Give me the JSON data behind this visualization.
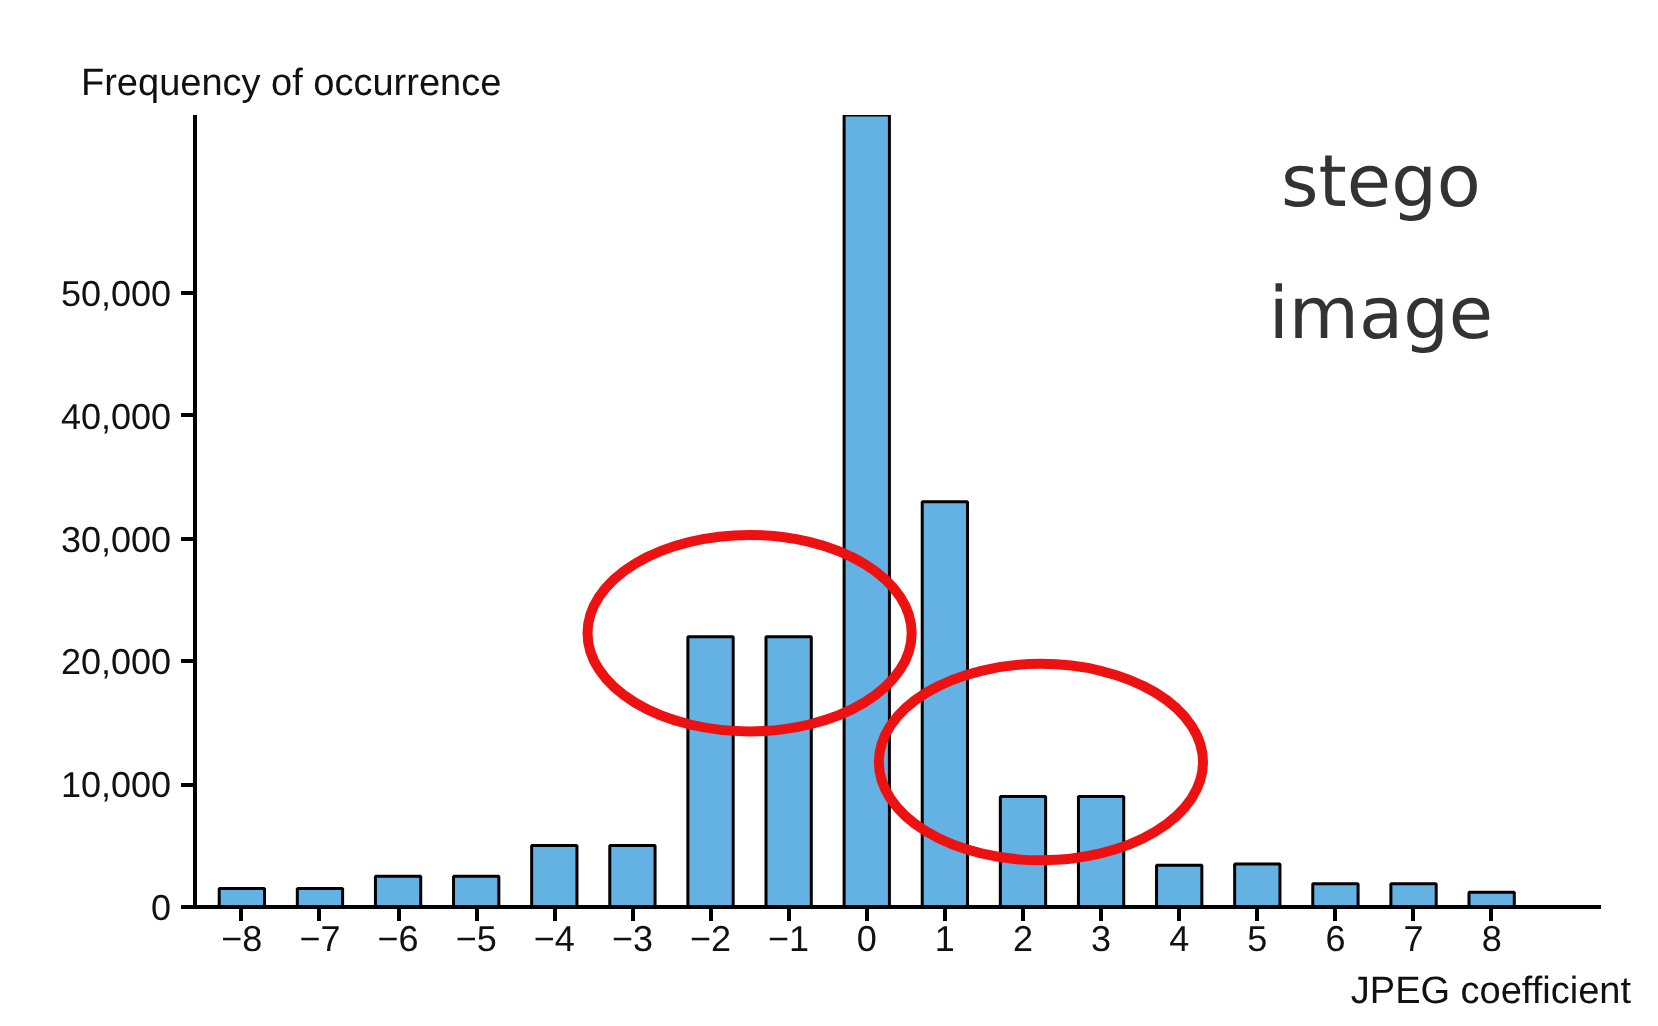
{
  "chart_data": {
    "type": "bar",
    "ylabel": "Frequency of occurrence",
    "xlabel": "JPEG coefficient",
    "annotations": [
      "stego image"
    ],
    "categories": [
      "−8",
      "−7",
      "−6",
      "−5",
      "−4",
      "−3",
      "−2",
      "−1",
      "0",
      "1",
      "2",
      "3",
      "4",
      "5",
      "6",
      "7",
      "8"
    ],
    "values": [
      1500,
      1500,
      2500,
      2500,
      5000,
      5000,
      22000,
      22000,
      64500,
      33000,
      9000,
      9000,
      3400,
      3500,
      1900,
      1900,
      1200
    ],
    "color": "#64b1e3",
    "ylim": [
      0,
      64500
    ],
    "yticks": [
      0,
      {
        "value": 10000,
        "label": "10,000"
      },
      {
        "value": 20000,
        "label": "20,000"
      },
      {
        "value": 30000,
        "label": "30,000"
      },
      {
        "value": 40000,
        "label": "40,000"
      },
      {
        "value": 50000,
        "label": "50,000"
      }
    ],
    "grid": false
  }
}
